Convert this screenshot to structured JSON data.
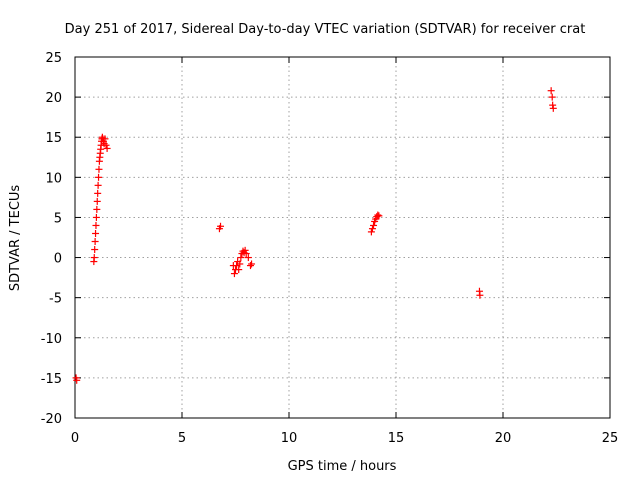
{
  "chart_data": {
    "type": "scatter",
    "title": "Day 251 of 2017, Sidereal Day-to-day VTEC variation (SDTVAR) for receiver crat",
    "xlabel": "GPS time / hours",
    "ylabel": "SDTVAR / TECUs",
    "xlim": [
      0,
      25
    ],
    "ylim": [
      -20,
      25
    ],
    "xticks": [
      0,
      5,
      10,
      15,
      20,
      25
    ],
    "yticks": [
      -20,
      -15,
      -10,
      -5,
      0,
      5,
      10,
      15,
      20,
      25
    ],
    "grid": true,
    "marker": "plus",
    "color": "#ff0000",
    "series": [
      {
        "name": "SDTVAR",
        "x": [
          0.05,
          0.08,
          0.88,
          0.9,
          0.92,
          0.94,
          0.96,
          0.98,
          1.0,
          1.02,
          1.04,
          1.06,
          1.08,
          1.1,
          1.12,
          1.14,
          1.16,
          1.18,
          1.2,
          1.22,
          1.24,
          1.26,
          1.28,
          1.3,
          1.33,
          1.36,
          1.4,
          1.45,
          1.5,
          6.75,
          6.8,
          7.4,
          7.45,
          7.5,
          7.55,
          7.6,
          7.65,
          7.7,
          7.75,
          7.8,
          7.85,
          7.9,
          7.95,
          8.0,
          8.1,
          8.2,
          8.25,
          13.85,
          13.9,
          13.95,
          14.0,
          14.05,
          14.1,
          14.15,
          14.2,
          18.9,
          18.92,
          22.25,
          22.3,
          22.32,
          22.35
        ],
        "y": [
          -15.0,
          -15.3,
          -0.5,
          0.0,
          1.0,
          2.0,
          3.0,
          4.0,
          5.0,
          6.0,
          7.0,
          8.0,
          9.0,
          10.0,
          11.0,
          12.0,
          12.5,
          13.0,
          13.5,
          14.0,
          14.5,
          14.8,
          15.0,
          14.8,
          14.5,
          14.2,
          14.8,
          14.0,
          13.6,
          3.6,
          3.9,
          -1.0,
          -2.0,
          -1.5,
          -1.0,
          -0.5,
          -1.5,
          -0.8,
          0.0,
          0.5,
          0.8,
          0.6,
          0.9,
          0.5,
          0.0,
          -1.0,
          -0.8,
          3.2,
          3.6,
          4.0,
          4.5,
          4.8,
          5.1,
          5.3,
          5.2,
          -4.2,
          -4.7,
          20.8,
          20.0,
          19.0,
          18.6
        ]
      }
    ]
  }
}
